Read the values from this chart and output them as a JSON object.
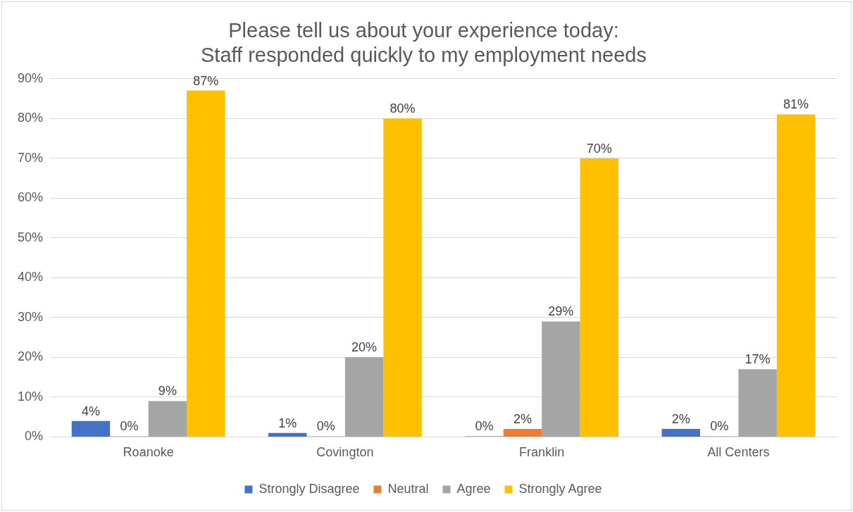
{
  "chart_data": {
    "type": "bar",
    "title": "Please tell us about your experience today:\nStaff responded quickly to my employment needs",
    "categories": [
      "Roanoke",
      "Covington",
      "Franklin",
      "All Centers"
    ],
    "series": [
      {
        "name": "Strongly Disagree",
        "color": "#4472c4",
        "values": [
          4,
          1,
          0,
          2
        ],
        "value_labels": [
          "4%",
          "1%",
          "0%",
          "2%"
        ]
      },
      {
        "name": "Neutral",
        "color": "#ed7d31",
        "values": [
          0,
          0,
          2,
          0
        ],
        "value_labels": [
          "0%",
          "0%",
          "2%",
          "0%"
        ]
      },
      {
        "name": "Agree",
        "color": "#a5a5a5",
        "values": [
          9,
          20,
          29,
          17
        ],
        "value_labels": [
          "9%",
          "20%",
          "29%",
          "17%"
        ]
      },
      {
        "name": "Strongly Agree",
        "color": "#ffc000",
        "values": [
          87,
          80,
          70,
          81
        ],
        "value_labels": [
          "87%",
          "80%",
          "70%",
          "81%"
        ]
      }
    ],
    "ylim": [
      0,
      90
    ],
    "yticks": [
      {
        "value": 0,
        "label": "0%"
      },
      {
        "value": 10,
        "label": "10%"
      },
      {
        "value": 20,
        "label": "20%"
      },
      {
        "value": 30,
        "label": "30%"
      },
      {
        "value": 40,
        "label": "40%"
      },
      {
        "value": 50,
        "label": "50%"
      },
      {
        "value": 60,
        "label": "60%"
      },
      {
        "value": 70,
        "label": "70%"
      },
      {
        "value": 80,
        "label": "80%"
      },
      {
        "value": 90,
        "label": "90%"
      }
    ],
    "grid": "y",
    "legend": "bottom"
  }
}
